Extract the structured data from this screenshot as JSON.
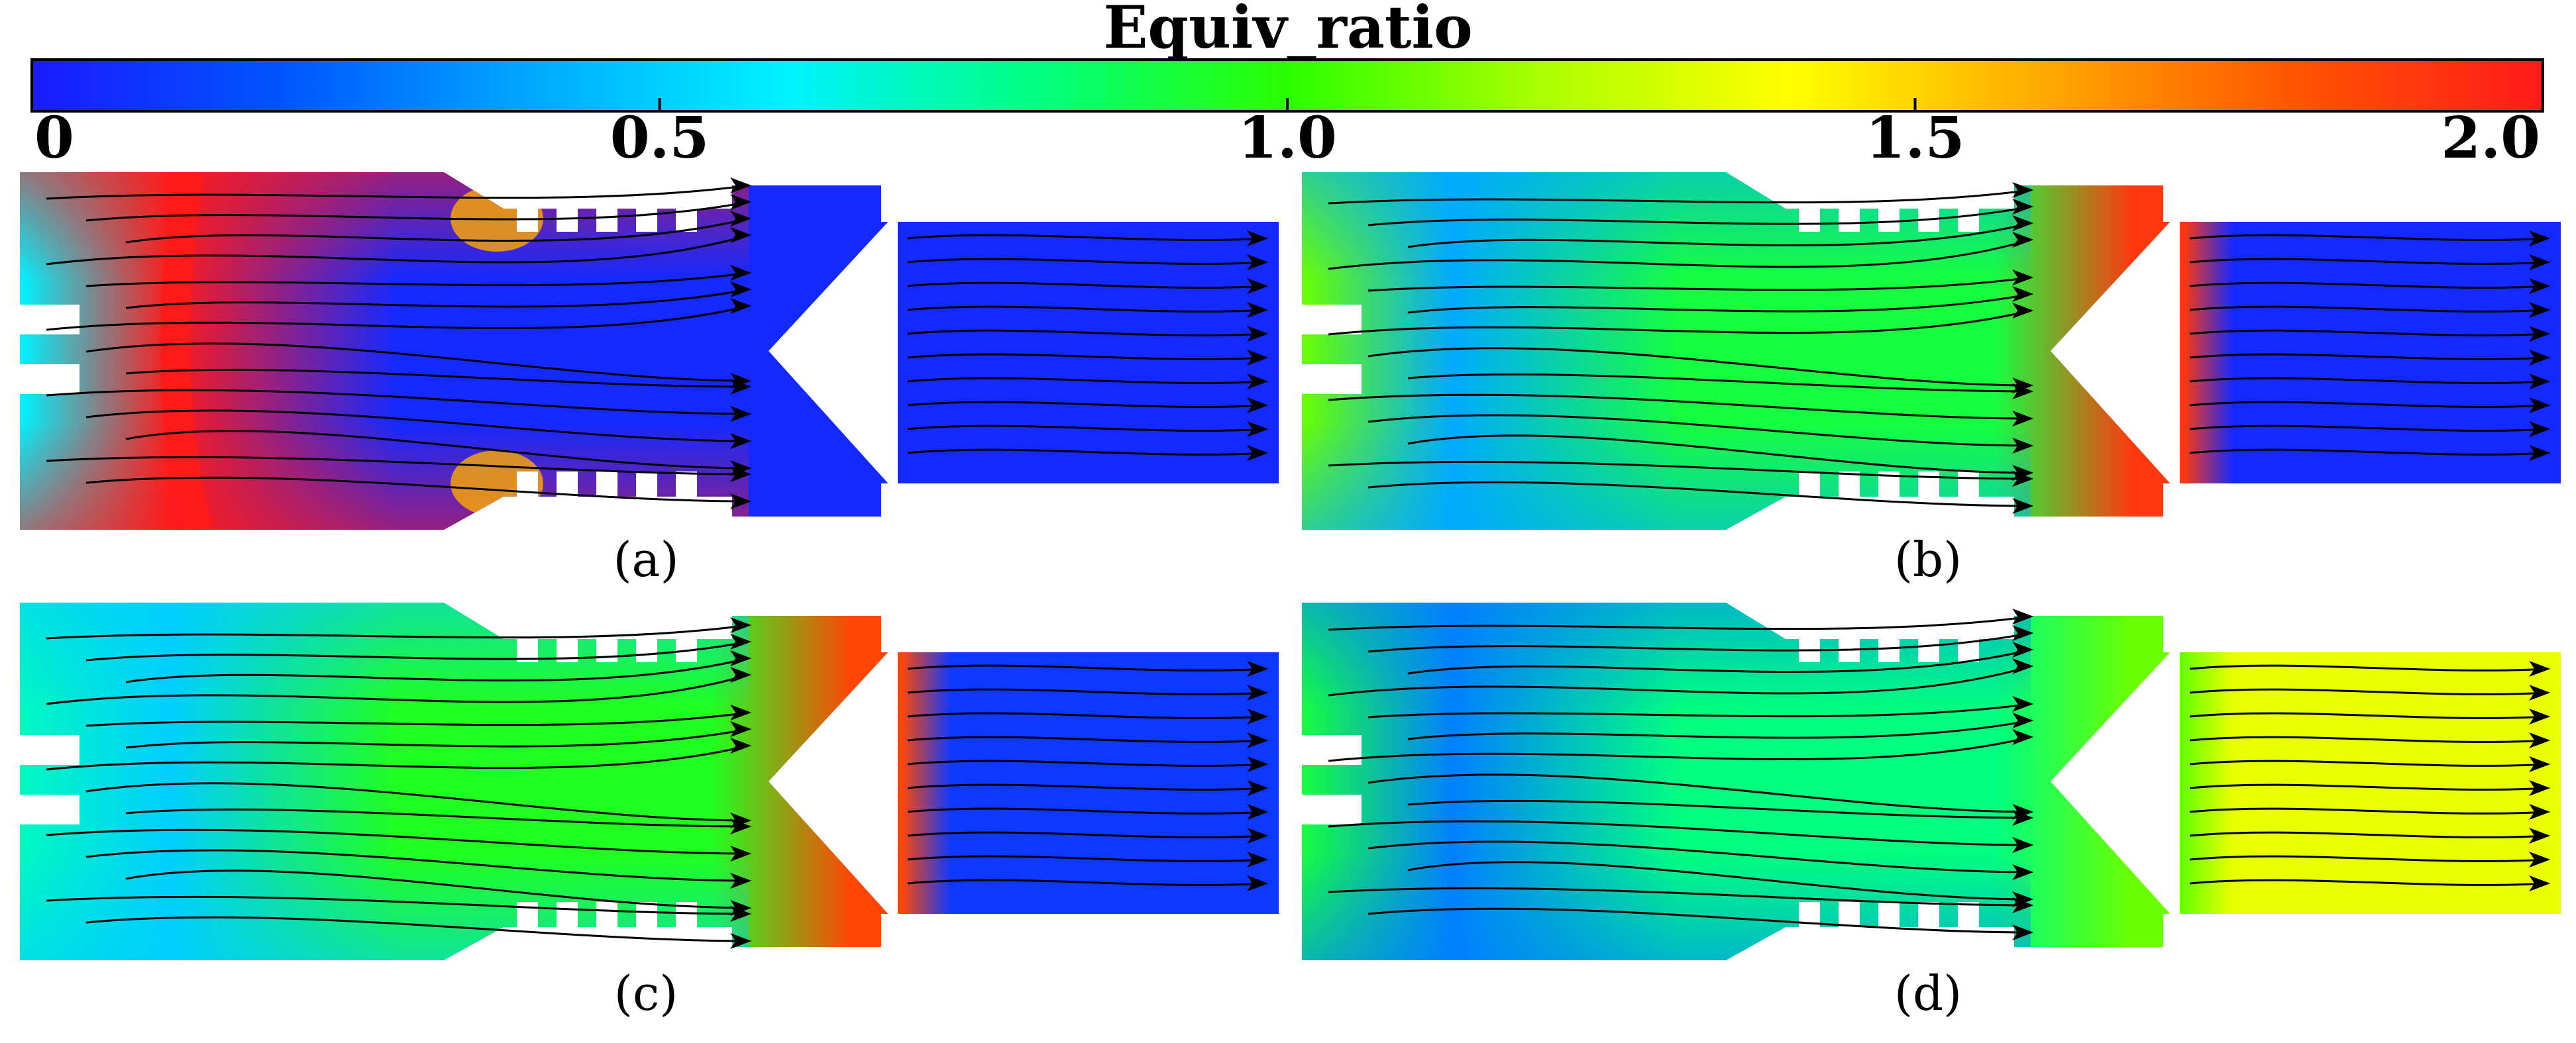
{
  "colorbar": {
    "title": "Equiv_ratio",
    "ticks": [
      {
        "value": 0,
        "label": "0"
      },
      {
        "value": 0.5,
        "label": "0.5"
      },
      {
        "value": 1.0,
        "label": "1.0"
      },
      {
        "value": 1.5,
        "label": "1.5"
      },
      {
        "value": 2.0,
        "label": "2.0"
      }
    ],
    "min": 0,
    "max": 2.0,
    "colors": [
      "#1a1aff",
      "#0055ff",
      "#00aaff",
      "#00f2ff",
      "#00ff80",
      "#2aff00",
      "#aaff00",
      "#ffff00",
      "#ffaa00",
      "#ff5500",
      "#ff1a1a"
    ]
  },
  "panels": [
    {
      "label": "(a)",
      "letter": "a",
      "core": 0.05,
      "wall": 2.0,
      "cavity": 0.6,
      "wake": 0.05,
      "vnotch": 0.05
    },
    {
      "label": "(b)",
      "letter": "b",
      "core": 0.9,
      "wall": 0.4,
      "cavity": 1.1,
      "wake": 0.05,
      "vnotch": 1.9
    },
    {
      "label": "(c)",
      "letter": "c",
      "core": 0.95,
      "wall": 0.5,
      "cavity": 0.7,
      "wake": 0.1,
      "vnotch": 1.85
    },
    {
      "label": "(d)",
      "letter": "d",
      "core": 0.8,
      "wall": 0.3,
      "cavity": 0.9,
      "wake": 1.35,
      "vnotch": 1.1
    }
  ]
}
